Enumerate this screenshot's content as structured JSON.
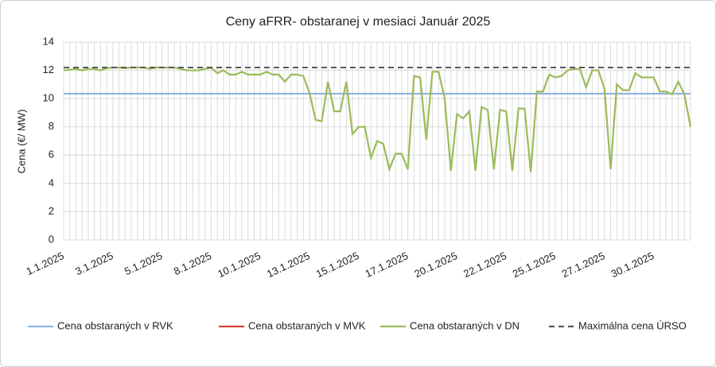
{
  "chart_data": {
    "type": "line",
    "title": "Ceny aFRR- obstaranej v mesiaci Január 2025",
    "ylabel": "Cena (€/ MW)",
    "ylim": [
      0,
      14
    ],
    "yticks": [
      0,
      2,
      4,
      6,
      8,
      10,
      12,
      14
    ],
    "grid": true,
    "legend": "bottom",
    "categories": [
      "1.1.2025",
      null,
      null,
      null,
      null,
      null,
      null,
      null,
      "3.1.2025",
      null,
      null,
      null,
      null,
      null,
      null,
      null,
      "5.1.2025",
      null,
      null,
      null,
      null,
      null,
      null,
      null,
      "8.1.2025",
      null,
      null,
      null,
      null,
      null,
      null,
      null,
      "10.1.2025",
      null,
      null,
      null,
      null,
      null,
      null,
      null,
      "13.1.2025",
      null,
      null,
      null,
      null,
      null,
      null,
      null,
      "15.1.2025",
      null,
      null,
      null,
      null,
      null,
      null,
      null,
      "17.1.2025",
      null,
      null,
      null,
      null,
      null,
      null,
      null,
      "20.1.2025",
      null,
      null,
      null,
      null,
      null,
      null,
      null,
      "22.1.2025",
      null,
      null,
      null,
      null,
      null,
      null,
      null,
      "25.1.2025",
      null,
      null,
      null,
      null,
      null,
      null,
      null,
      "27.1.2025",
      null,
      null,
      null,
      null,
      null,
      null,
      null,
      "30.1.2025",
      null,
      null,
      null,
      null,
      null,
      null
    ],
    "series": [
      {
        "name": "Cena obstaraných v RVK",
        "color": "#8db4e2",
        "dash": false,
        "values": [
          10.35,
          10.35,
          10.35,
          10.35,
          10.35,
          10.35,
          10.35,
          10.35,
          10.35,
          10.35,
          10.35,
          10.35,
          10.35,
          10.35,
          10.35,
          10.35,
          10.35,
          10.35,
          10.35,
          10.35,
          10.35,
          10.35,
          10.35,
          10.35,
          10.35,
          10.35,
          10.35,
          10.35,
          10.35,
          10.35,
          10.35,
          10.35,
          10.35,
          10.35,
          10.35,
          10.35,
          10.35,
          10.35,
          10.35,
          10.35,
          10.35,
          10.35,
          10.35,
          10.35,
          10.35,
          10.35,
          10.35,
          10.35,
          10.35,
          10.35,
          10.35,
          10.35,
          10.35,
          10.35,
          10.35,
          10.35,
          10.35,
          10.35,
          10.35,
          10.35,
          10.35,
          10.35,
          10.35,
          10.35,
          10.35,
          10.35,
          10.35,
          10.35,
          10.35,
          10.35,
          10.35,
          10.35,
          10.35,
          10.35,
          10.35,
          10.35,
          10.35,
          10.35,
          10.35,
          10.35,
          10.35,
          10.35,
          10.35,
          10.35,
          10.35,
          10.35,
          10.35,
          10.35,
          10.35,
          10.35,
          10.35,
          10.35,
          10.35,
          10.35,
          10.35,
          10.35,
          10.35,
          10.35,
          10.35,
          10.35,
          10.35,
          10.35,
          10.35
        ]
      },
      {
        "name": "Cena obstaraných v MVK",
        "color": "#e0403a",
        "dash": false,
        "values": [
          null,
          null,
          null,
          null,
          null,
          null,
          null,
          null,
          null,
          null,
          null,
          null,
          null,
          null,
          null,
          null,
          null,
          null,
          null,
          null,
          null,
          null,
          null,
          null,
          null,
          null,
          null,
          null,
          null,
          null,
          null,
          null,
          null,
          null,
          null,
          null,
          null,
          null,
          null,
          null,
          null,
          null,
          null,
          null,
          null,
          null,
          null,
          null,
          null,
          null,
          null,
          null,
          null,
          null,
          null,
          null,
          null,
          null,
          null,
          null,
          null,
          null,
          null,
          null,
          null,
          null,
          null,
          null,
          null,
          null,
          null,
          null,
          null,
          null,
          null,
          null,
          null,
          null,
          null,
          null,
          null,
          null,
          null,
          null,
          null,
          null,
          null,
          null,
          null,
          null,
          null,
          null,
          null,
          null,
          null,
          null,
          null,
          null,
          null,
          null,
          null,
          null,
          null
        ]
      },
      {
        "name": "Cena obstaraných v DN",
        "color": "#9bbb59",
        "dash": false,
        "values": [
          12.0,
          12.05,
          12.1,
          12.0,
          12.1,
          12.1,
          12.0,
          12.15,
          12.2,
          12.2,
          12.15,
          12.2,
          12.2,
          12.2,
          12.1,
          12.2,
          12.2,
          12.2,
          12.2,
          12.1,
          12.0,
          12.0,
          12.0,
          12.1,
          12.2,
          11.8,
          12.0,
          11.7,
          11.7,
          11.9,
          11.7,
          11.7,
          11.7,
          11.9,
          11.7,
          11.7,
          11.2,
          11.7,
          11.7,
          11.6,
          10.4,
          8.5,
          8.4,
          11.2,
          9.1,
          9.1,
          11.2,
          7.5,
          8.0,
          8.0,
          5.8,
          7.0,
          6.8,
          5.0,
          6.1,
          6.1,
          5.0,
          11.6,
          11.5,
          7.1,
          11.9,
          11.9,
          10.0,
          4.9,
          8.9,
          8.6,
          9.1,
          4.9,
          9.4,
          9.2,
          5.0,
          9.2,
          9.1,
          4.9,
          9.3,
          9.3,
          4.8,
          10.5,
          10.5,
          11.7,
          11.5,
          11.6,
          12.0,
          12.1,
          12.1,
          10.8,
          12.0,
          12.0,
          10.7,
          5.0,
          11.0,
          10.6,
          10.6,
          11.8,
          11.5,
          11.5,
          11.5,
          10.5,
          10.5,
          10.3,
          11.2,
          10.3,
          8.0
        ]
      },
      {
        "name": "Maximálna cena ÚRSO",
        "color": "#595959",
        "dash": true,
        "values": [
          12.2,
          12.2,
          12.2,
          12.2,
          12.2,
          12.2,
          12.2,
          12.2,
          12.2,
          12.2,
          12.2,
          12.2,
          12.2,
          12.2,
          12.2,
          12.2,
          12.2,
          12.2,
          12.2,
          12.2,
          12.2,
          12.2,
          12.2,
          12.2,
          12.2,
          12.2,
          12.2,
          12.2,
          12.2,
          12.2,
          12.2,
          12.2,
          12.2,
          12.2,
          12.2,
          12.2,
          12.2,
          12.2,
          12.2,
          12.2,
          12.2,
          12.2,
          12.2,
          12.2,
          12.2,
          12.2,
          12.2,
          12.2,
          12.2,
          12.2,
          12.2,
          12.2,
          12.2,
          12.2,
          12.2,
          12.2,
          12.2,
          12.2,
          12.2,
          12.2,
          12.2,
          12.2,
          12.2,
          12.2,
          12.2,
          12.2,
          12.2,
          12.2,
          12.2,
          12.2,
          12.2,
          12.2,
          12.2,
          12.2,
          12.2,
          12.2,
          12.2,
          12.2,
          12.2,
          12.2,
          12.2,
          12.2,
          12.2,
          12.2,
          12.2,
          12.2,
          12.2,
          12.2,
          12.2,
          12.2,
          12.2,
          12.2,
          12.2,
          12.2,
          12.2,
          12.2,
          12.2,
          12.2,
          12.2,
          12.2,
          12.2,
          12.2,
          12.2
        ]
      }
    ]
  }
}
